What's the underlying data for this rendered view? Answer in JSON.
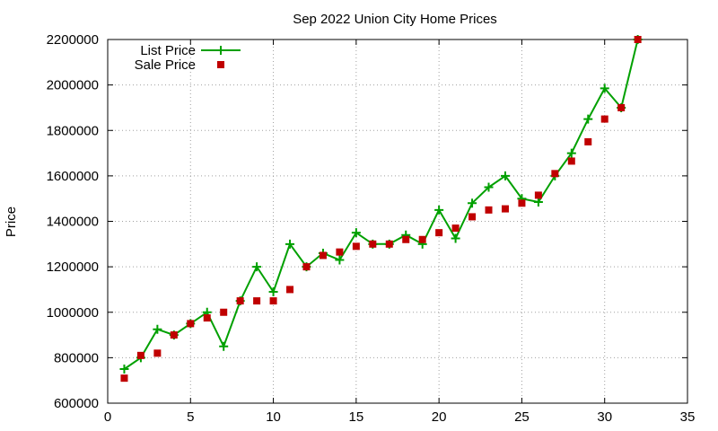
{
  "chart_data": {
    "type": "line",
    "title": "Sep 2022 Union City Home Prices",
    "xlabel": "",
    "ylabel": "Price",
    "xlim": [
      0,
      35
    ],
    "ylim": [
      600000,
      2200000
    ],
    "x_ticks": [
      0,
      5,
      10,
      15,
      20,
      25,
      30,
      35
    ],
    "y_ticks": [
      600000,
      800000,
      1000000,
      1200000,
      1400000,
      1600000,
      1800000,
      2000000,
      2200000
    ],
    "grid": true,
    "legend_position": "top-left",
    "series": [
      {
        "name": "List Price",
        "style": "line-with-plus-markers",
        "color": "#00a000",
        "x": [
          1,
          2,
          3,
          4,
          5,
          6,
          7,
          8,
          9,
          10,
          11,
          12,
          13,
          14,
          15,
          16,
          17,
          18,
          19,
          20,
          21,
          22,
          23,
          24,
          25,
          26,
          27,
          28,
          29,
          30,
          31,
          32
        ],
        "values": [
          750000,
          800000,
          925000,
          900000,
          950000,
          1000000,
          850000,
          1050000,
          1200000,
          1090000,
          1300000,
          1200000,
          1260000,
          1230000,
          1350000,
          1300000,
          1300000,
          1340000,
          1300000,
          1450000,
          1325000,
          1480000,
          1550000,
          1600000,
          1500000,
          1485000,
          1600000,
          1700000,
          1850000,
          1985000,
          1900000,
          2200000
        ]
      },
      {
        "name": "Sale Price",
        "style": "square-markers",
        "color": "#c00000",
        "x": [
          1,
          2,
          3,
          4,
          5,
          6,
          7,
          8,
          9,
          10,
          11,
          12,
          13,
          14,
          15,
          16,
          17,
          18,
          19,
          20,
          21,
          22,
          23,
          24,
          25,
          26,
          27,
          28,
          29,
          30,
          31,
          32
        ],
        "values": [
          710000,
          810000,
          820000,
          900000,
          950000,
          975000,
          1000000,
          1050000,
          1050000,
          1050000,
          1100000,
          1200000,
          1250000,
          1265000,
          1290000,
          1300000,
          1300000,
          1320000,
          1320000,
          1350000,
          1370000,
          1420000,
          1450000,
          1455000,
          1480000,
          1515000,
          1610000,
          1665000,
          1750000,
          1850000,
          1900000,
          2200000
        ]
      }
    ]
  }
}
